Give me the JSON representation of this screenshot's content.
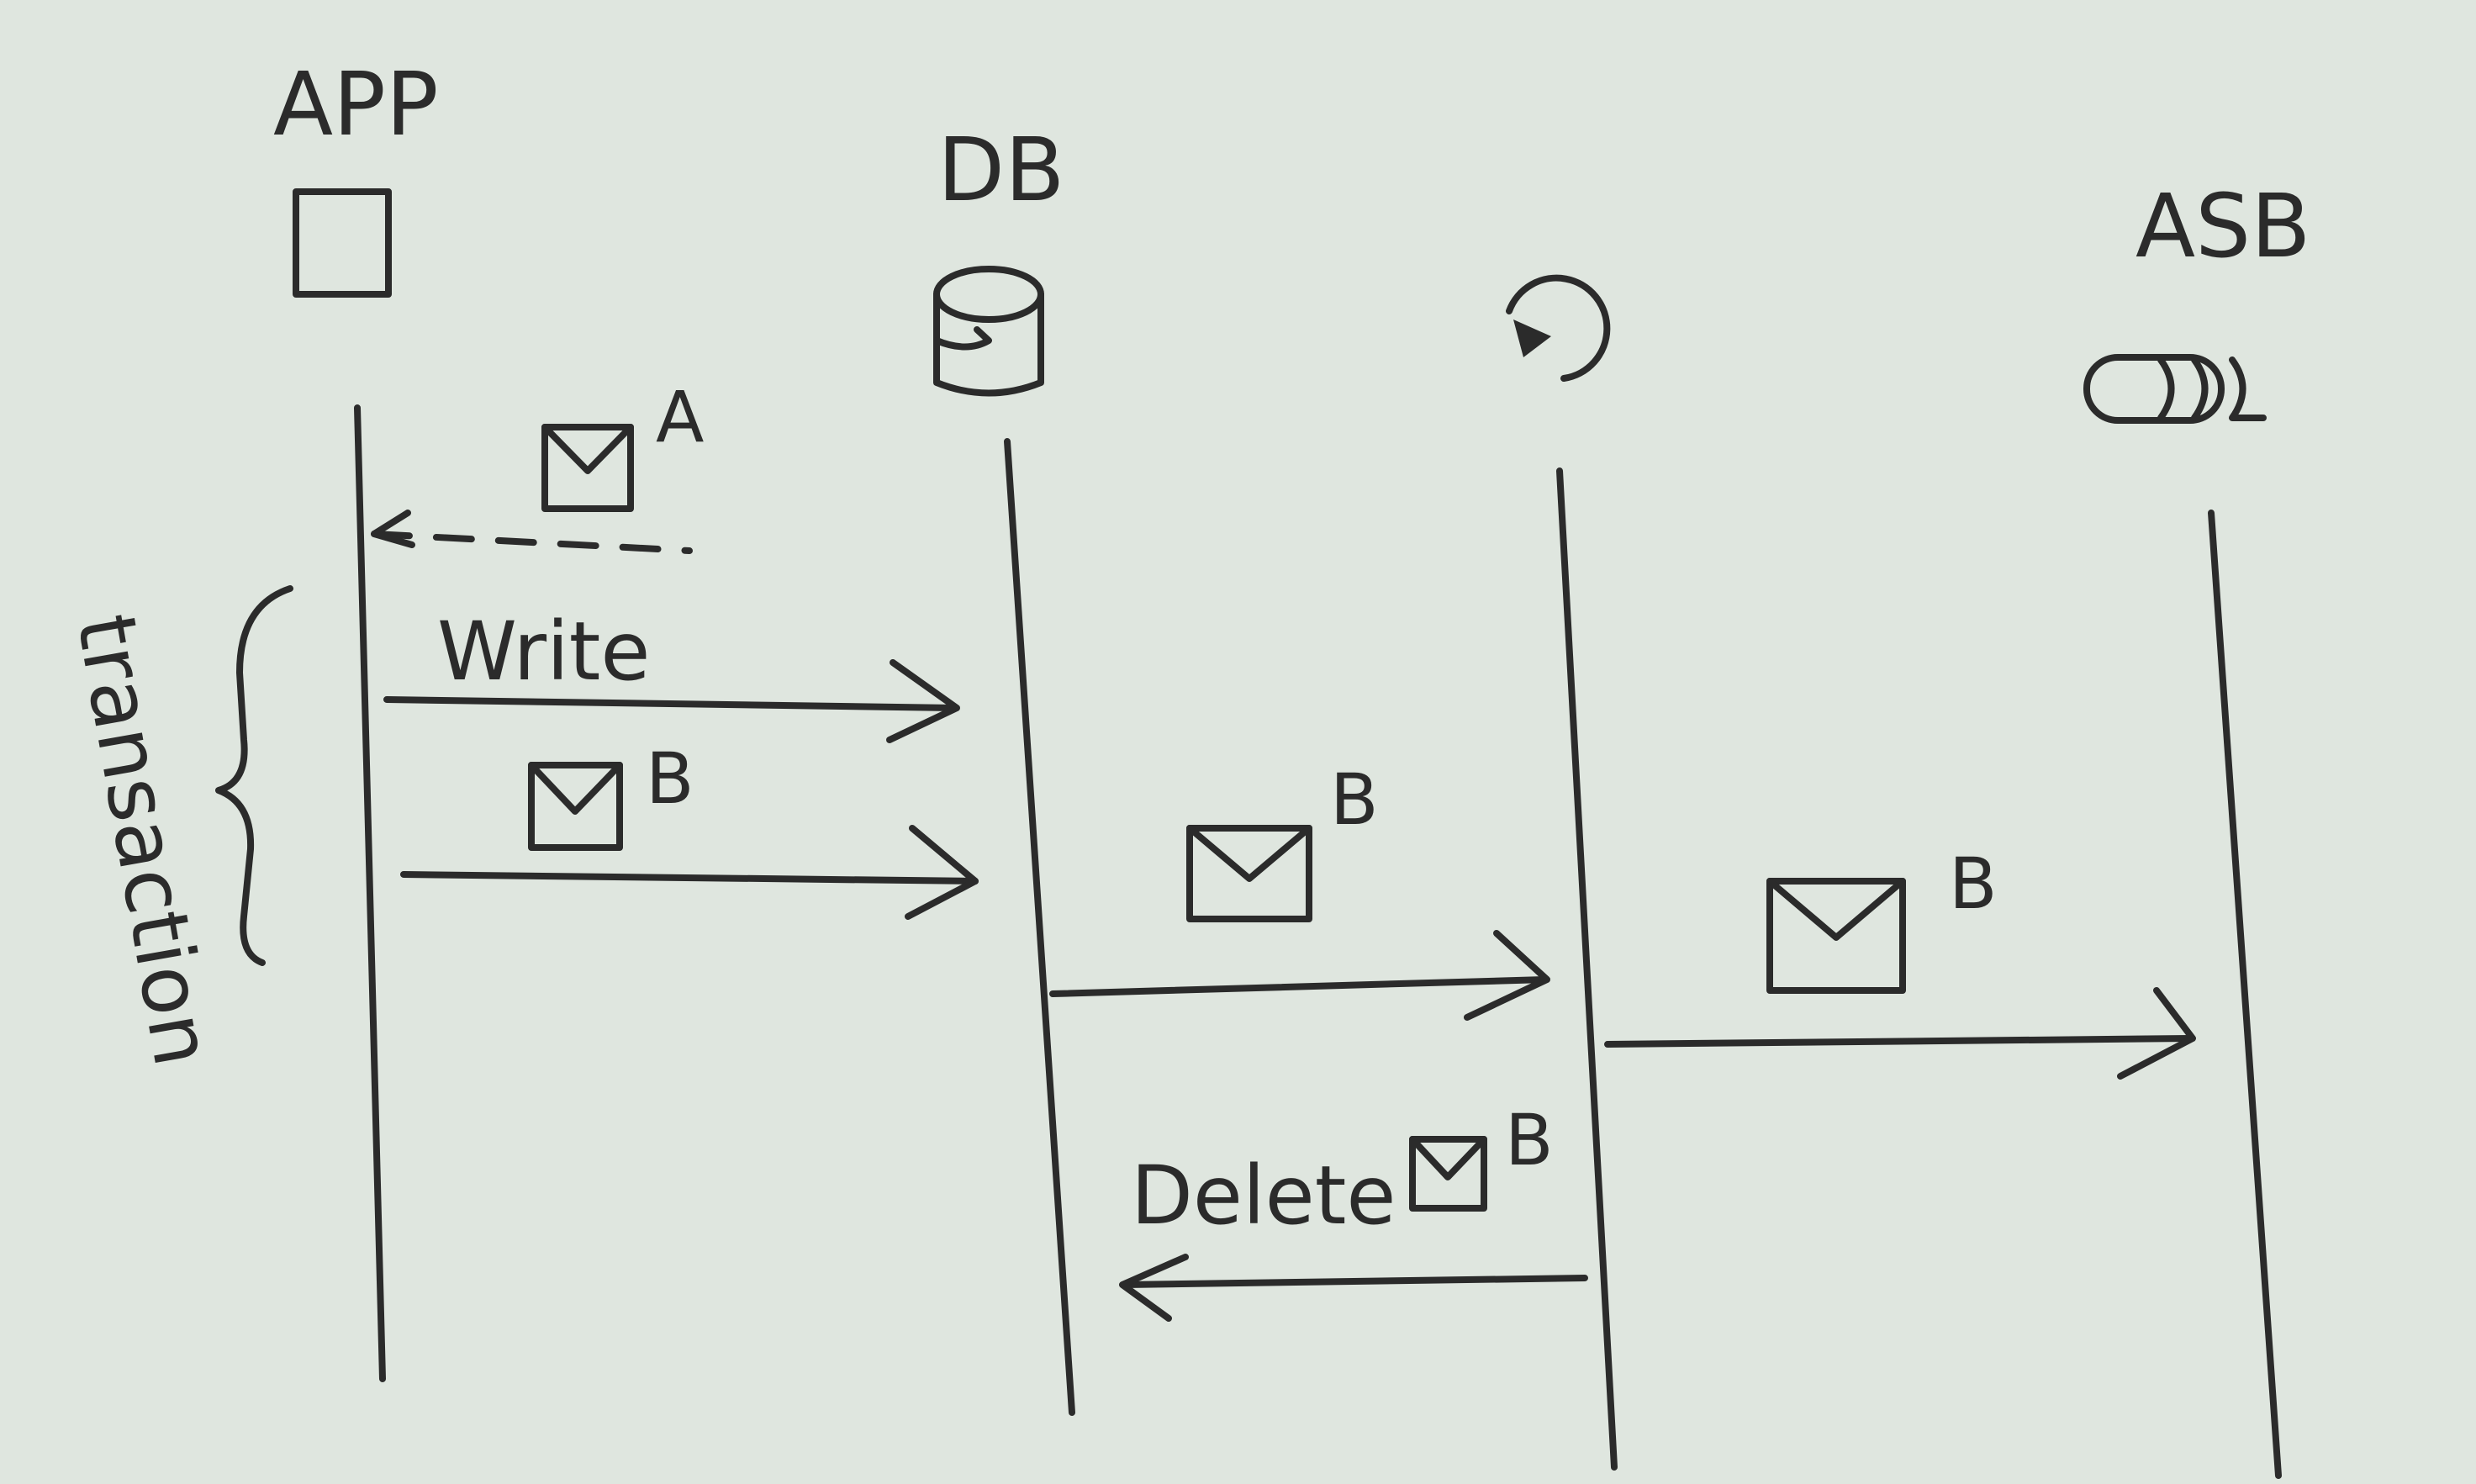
{
  "participants": {
    "app": {
      "label": "APP",
      "icon": "square-icon"
    },
    "db": {
      "label": "DB",
      "icon": "database-cylinder-icon"
    },
    "relay": {
      "label": "",
      "icon": "circular-arrow-icon"
    },
    "asb": {
      "label": "ASB",
      "icon": "queue-icon"
    }
  },
  "messages": {
    "incoming": {
      "message_label": "A",
      "style": "dashed",
      "from": "db",
      "to": "app"
    },
    "write": {
      "label": "Write",
      "from": "app",
      "to": "db"
    },
    "store_message": {
      "message_label": "B",
      "from": "app",
      "to": "db"
    },
    "relay_read": {
      "message_label": "B",
      "from": "db",
      "to": "relay"
    },
    "publish": {
      "message_label": "B",
      "from": "relay",
      "to": "asb"
    },
    "delete": {
      "label": "Delete",
      "message_label": "B",
      "from": "relay",
      "to": "db"
    }
  },
  "transaction": {
    "label": "transaction"
  },
  "colors": {
    "ink": "#2b2b2b",
    "paper": "#dfe6df"
  }
}
